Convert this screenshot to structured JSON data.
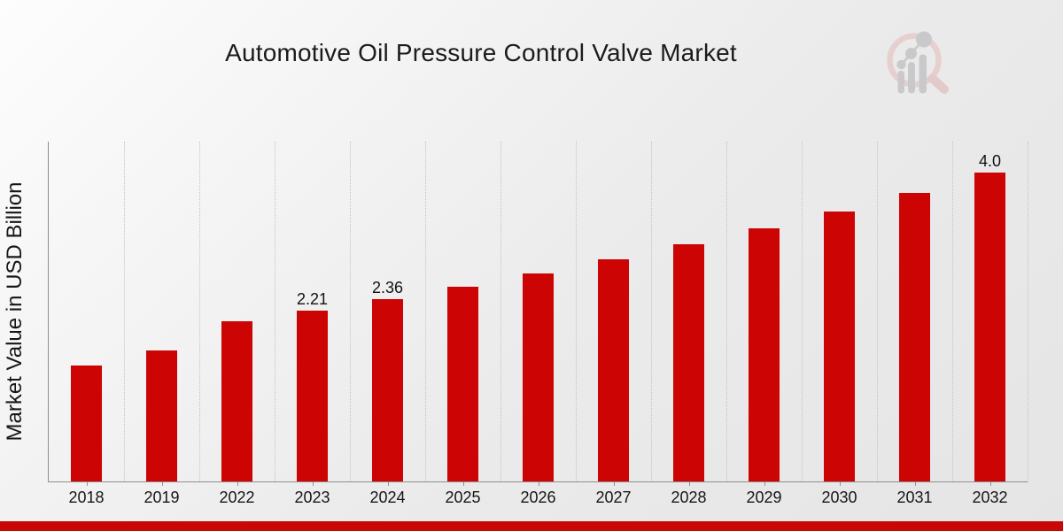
{
  "header": {
    "title": "Automotive Oil Pressure Control Valve Market"
  },
  "watermark": {
    "logo_name": "market-research-growth-magnifier-logo",
    "ring_color": "#e7cfcf",
    "glyph_color": "#c9c9cc"
  },
  "footer": {
    "stripe_color": "#c90707"
  },
  "chart_data": {
    "type": "bar",
    "title": "Automotive Oil Pressure Control Valve Market",
    "xlabel": "",
    "ylabel": "Market Value in USD Billion",
    "unit": "USD Billion",
    "categories": [
      "2018",
      "2019",
      "2022",
      "2023",
      "2024",
      "2025",
      "2026",
      "2027",
      "2028",
      "2029",
      "2030",
      "2031",
      "2032"
    ],
    "values": [
      1.5,
      1.7,
      2.07,
      2.21,
      2.36,
      2.52,
      2.69,
      2.88,
      3.07,
      3.28,
      3.5,
      3.74,
      4.0
    ],
    "value_labels": [
      "",
      "",
      "",
      "2.21",
      "2.36",
      "",
      "",
      "",
      "",
      "",
      "",
      "",
      "4.0"
    ],
    "ylim": [
      0,
      4.4
    ],
    "bar_color": "#cc0504",
    "grid": "vertical-dotted",
    "legend": "none",
    "y_axis_ticks": "none"
  }
}
